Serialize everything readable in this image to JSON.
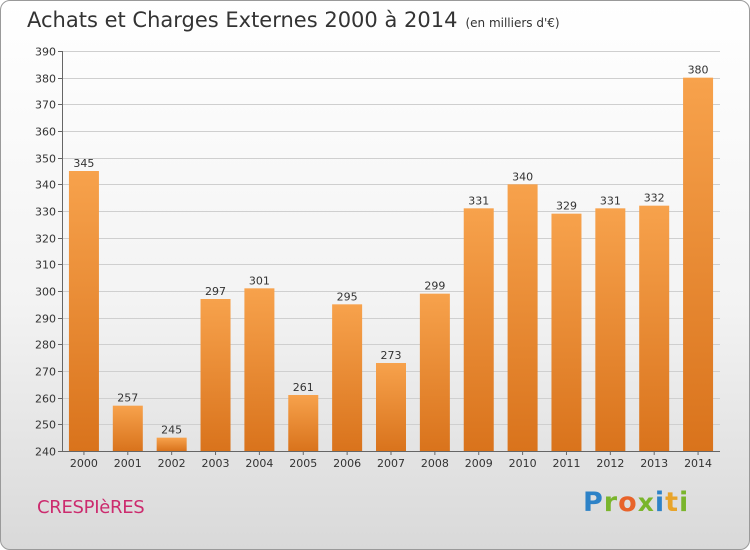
{
  "header": {
    "title": "Achats et Charges Externes 2000 à 2014",
    "unit": "(en milliers d'€)"
  },
  "footer": {
    "commune": "CRESPIèRES",
    "logo_text": "Proxiti"
  },
  "chart_data": {
    "type": "bar",
    "title": "Achats et Charges Externes 2000 à 2014",
    "subtitle": "(en milliers d'€)",
    "categories": [
      "2000",
      "2001",
      "2002",
      "2003",
      "2004",
      "2005",
      "2006",
      "2007",
      "2008",
      "2009",
      "2010",
      "2011",
      "2012",
      "2013",
      "2014"
    ],
    "values": [
      345,
      257,
      245,
      297,
      301,
      261,
      295,
      273,
      299,
      331,
      340,
      329,
      331,
      332,
      380
    ],
    "ylim": [
      240,
      390
    ],
    "yticks": [
      240,
      250,
      260,
      270,
      280,
      290,
      300,
      310,
      320,
      330,
      340,
      350,
      360,
      370,
      380,
      390
    ],
    "grid": true,
    "colors": {
      "bar_light": "#f7a24c",
      "bar_dark": "#d9731c",
      "grid": "#cfcfcf"
    }
  }
}
